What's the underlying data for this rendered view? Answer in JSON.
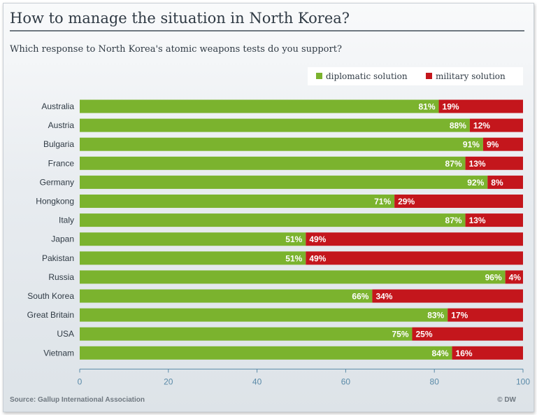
{
  "title": "How to manage the situation in North Korea?",
  "subtitle": "Which response to North Korea's atomic weapons tests do you support?",
  "source": "Source: Gallup International Association",
  "credit": "© DW",
  "colors": {
    "diplomatic": "#7bb32e",
    "military": "#c4161c",
    "axis": "#5a8aa8",
    "text": "#2f3a44"
  },
  "chart_data": {
    "type": "bar",
    "orientation": "horizontal",
    "stacked": true,
    "categories": [
      "Australia",
      "Austria",
      "Bulgaria",
      "France",
      "Germany",
      "Hongkong",
      "Italy",
      "Japan",
      "Pakistan",
      "Russia",
      "South Korea",
      "Great Britain",
      "USA",
      "Vietnam"
    ],
    "series": [
      {
        "name": "diplomatic solution",
        "values": [
          81,
          88,
          91,
          87,
          92,
          71,
          87,
          51,
          51,
          96,
          66,
          83,
          75,
          84
        ]
      },
      {
        "name": "military solution",
        "values": [
          19,
          12,
          9,
          13,
          8,
          29,
          13,
          49,
          49,
          4,
          34,
          17,
          25,
          16
        ]
      }
    ],
    "data_labels": [
      [
        "81%",
        "88%",
        "91%",
        "87%",
        "92%",
        "71%",
        "87%",
        "51%",
        "51%",
        "96%",
        "66%",
        "83%",
        "75%",
        "84%"
      ],
      [
        "19%",
        "12%",
        "9%",
        "13%",
        "8%",
        "29%",
        "13%",
        "49%",
        "49%",
        "4%",
        "34%",
        "17%",
        "25%",
        "16%"
      ]
    ],
    "xlim": [
      0,
      100
    ],
    "xticks": [
      0,
      20,
      40,
      60,
      80,
      100
    ],
    "legend_position": "top-right",
    "grid": false
  }
}
